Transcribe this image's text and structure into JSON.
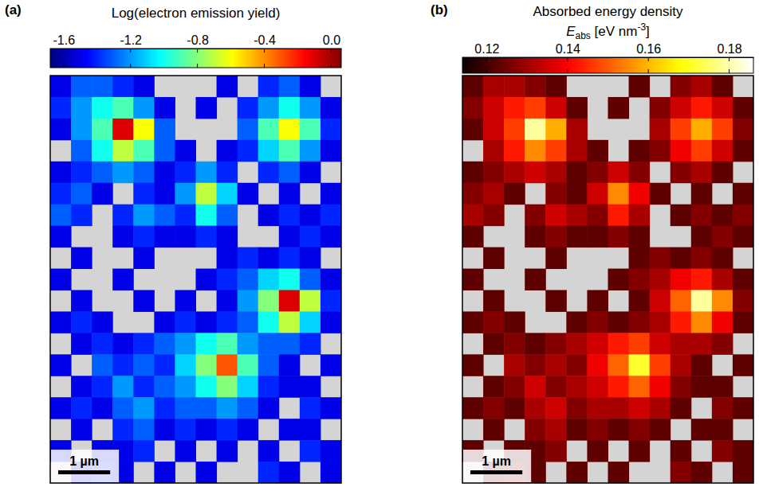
{
  "chart_data": [
    {
      "type": "heatmap",
      "panel_label": "(a)",
      "colorbar_title": "Log(electron emission yield)",
      "color": "jet",
      "colorbar_range": [
        -1.68,
        0.06
      ],
      "colorbar_ticks": [
        -1.6,
        -1.2,
        -0.8,
        -0.4,
        {
          "value": 0,
          "label": "0.0"
        }
      ],
      "tick_labels": false,
      "xlim": [
        0,
        5.6
      ],
      "ylim": [
        0,
        7.9
      ],
      "scale_bar": {
        "label": "1 µm",
        "length": 1
      },
      "cells": [
        [
          -1.5,
          -1.3,
          -1.3,
          -1.4,
          -1.5,
          null,
          null,
          null,
          -1.5,
          null,
          -1.4,
          -1.3,
          -1.5,
          null
        ],
        [
          -1.4,
          -1.2,
          -1.0,
          -0.9,
          -1.2,
          -1.5,
          null,
          -1.5,
          null,
          -1.4,
          -1.2,
          -1.0,
          -1.2,
          -1.5
        ],
        [
          -1.5,
          -1.2,
          -0.9,
          -0.1,
          -0.6,
          -1.3,
          null,
          null,
          null,
          -1.3,
          -0.9,
          -0.6,
          -0.9,
          -1.4
        ],
        [
          null,
          -1.3,
          -1.0,
          -0.7,
          -0.9,
          -1.3,
          -1.5,
          null,
          -1.5,
          -1.4,
          -1.1,
          -0.9,
          -1.2,
          -1.5
        ],
        [
          -1.5,
          -1.4,
          -1.3,
          -1.2,
          -1.3,
          -1.5,
          -1.4,
          -1.2,
          -1.4,
          null,
          -1.4,
          -1.3,
          -1.5,
          null
        ],
        [
          -1.4,
          -1.3,
          -1.5,
          null,
          -1.4,
          -1.5,
          -1.2,
          -0.7,
          -1.1,
          -1.5,
          null,
          -1.5,
          null,
          -1.5
        ],
        [
          -1.3,
          -1.4,
          null,
          -1.4,
          -1.2,
          -1.3,
          -1.4,
          -1.0,
          -1.3,
          null,
          -1.5,
          -1.4,
          -1.5,
          -1.4
        ],
        [
          -1.5,
          null,
          null,
          -1.5,
          -1.4,
          -1.5,
          -1.5,
          -1.4,
          -1.5,
          null,
          null,
          -1.5,
          -1.4,
          -1.5
        ],
        [
          null,
          -1.5,
          null,
          null,
          -1.5,
          null,
          null,
          null,
          -1.5,
          -1.4,
          -1.5,
          -1.4,
          -1.5,
          null
        ],
        [
          -1.5,
          null,
          null,
          -1.5,
          null,
          null,
          null,
          -1.5,
          -1.4,
          -1.3,
          -1.1,
          -1.0,
          -1.3,
          -1.5
        ],
        [
          null,
          -1.5,
          null,
          null,
          -1.5,
          null,
          -1.5,
          null,
          -1.5,
          -1.2,
          -0.8,
          -0.1,
          -0.7,
          -1.4
        ],
        [
          -1.5,
          -1.4,
          -1.5,
          null,
          null,
          -1.5,
          -1.4,
          -1.5,
          -1.4,
          -1.3,
          -1.0,
          -0.7,
          -1.1,
          -1.5
        ],
        [
          null,
          -1.5,
          -1.4,
          -1.5,
          -1.4,
          -1.3,
          -1.2,
          -1.0,
          -0.9,
          -1.2,
          -1.3,
          -1.3,
          -1.4,
          null
        ],
        [
          -1.5,
          null,
          -1.3,
          -1.4,
          -1.3,
          -1.4,
          -1.1,
          -0.8,
          -0.3,
          -0.9,
          -1.3,
          -1.5,
          null,
          -1.5
        ],
        [
          null,
          -1.5,
          -1.4,
          -1.2,
          -1.4,
          -1.3,
          -1.2,
          -1.0,
          -0.8,
          -1.1,
          -1.4,
          -1.5,
          -1.5,
          null
        ],
        [
          -1.5,
          -1.4,
          -1.5,
          -1.3,
          -1.2,
          -1.4,
          -1.3,
          -1.3,
          -1.2,
          -1.3,
          -1.5,
          null,
          -1.4,
          -1.5
        ],
        [
          null,
          -1.5,
          null,
          -1.4,
          -1.3,
          -1.5,
          -1.4,
          -1.5,
          -1.4,
          -1.5,
          null,
          -1.5,
          -1.5,
          null
        ],
        [
          -1.5,
          null,
          -1.5,
          -1.5,
          -1.4,
          null,
          -1.5,
          null,
          -1.5,
          null,
          -1.5,
          null,
          -1.4,
          -1.5
        ],
        [
          null,
          -1.5,
          -1.4,
          -1.5,
          null,
          -1.5,
          null,
          -1.5,
          null,
          null,
          -1.4,
          -1.5,
          null,
          -1.5
        ]
      ]
    },
    {
      "type": "heatmap",
      "panel_label": "(b)",
      "colorbar_title": [
        "Absorbed energy density",
        {
          "text": "E",
          "sub": "abs",
          "rest": " [eV nm",
          "sup": "-3",
          "end": "]"
        }
      ],
      "color": "hot",
      "colorbar_range": [
        0.114,
        0.186
      ],
      "colorbar_ticks": [
        0.12,
        0.14,
        0.16,
        0.18
      ],
      "tick_labels": false,
      "xlim": [
        0,
        5.6
      ],
      "ylim": [
        0,
        7.9
      ],
      "scale_bar": {
        "label": "1 µm",
        "length": 1
      },
      "cells": [
        [
          0.123,
          0.131,
          0.131,
          0.127,
          0.123,
          null,
          null,
          null,
          0.123,
          null,
          0.127,
          0.131,
          0.123,
          null
        ],
        [
          0.127,
          0.135,
          0.143,
          0.147,
          0.135,
          0.123,
          null,
          0.123,
          null,
          0.127,
          0.135,
          0.143,
          0.135,
          0.123
        ],
        [
          0.123,
          0.135,
          0.147,
          0.179,
          0.159,
          0.131,
          null,
          null,
          null,
          0.131,
          0.147,
          0.159,
          0.147,
          0.127
        ],
        [
          null,
          0.131,
          0.143,
          0.155,
          0.147,
          0.131,
          0.123,
          null,
          0.123,
          0.127,
          0.139,
          0.147,
          0.135,
          0.123
        ],
        [
          0.123,
          0.127,
          0.131,
          0.135,
          0.131,
          0.123,
          0.127,
          0.135,
          0.127,
          null,
          0.127,
          0.131,
          0.123,
          null
        ],
        [
          0.127,
          0.131,
          0.123,
          null,
          0.127,
          0.123,
          0.135,
          0.155,
          0.139,
          0.123,
          null,
          0.123,
          null,
          0.123
        ],
        [
          0.131,
          0.127,
          null,
          0.127,
          0.135,
          0.131,
          0.127,
          0.143,
          0.131,
          null,
          0.123,
          0.127,
          0.123,
          0.127
        ],
        [
          0.123,
          null,
          null,
          0.123,
          0.127,
          0.123,
          0.123,
          0.127,
          0.123,
          null,
          null,
          0.123,
          0.127,
          0.123
        ],
        [
          null,
          0.123,
          null,
          null,
          0.123,
          null,
          null,
          null,
          0.123,
          0.127,
          0.123,
          0.127,
          0.123,
          null
        ],
        [
          0.123,
          null,
          null,
          0.123,
          null,
          null,
          null,
          0.123,
          0.127,
          0.131,
          0.139,
          0.143,
          0.131,
          0.123
        ],
        [
          null,
          0.123,
          null,
          null,
          0.123,
          null,
          0.123,
          null,
          0.123,
          0.135,
          0.151,
          0.179,
          0.155,
          0.127
        ],
        [
          0.123,
          0.127,
          0.123,
          null,
          null,
          0.123,
          0.127,
          0.123,
          0.127,
          0.131,
          0.143,
          0.155,
          0.139,
          0.123
        ],
        [
          null,
          0.123,
          0.127,
          0.123,
          0.127,
          0.131,
          0.135,
          0.143,
          0.147,
          0.135,
          0.131,
          0.131,
          0.127,
          null
        ],
        [
          0.123,
          null,
          0.131,
          0.127,
          0.131,
          0.127,
          0.139,
          0.151,
          0.171,
          0.147,
          0.131,
          0.123,
          null,
          0.123
        ],
        [
          null,
          0.123,
          0.127,
          0.135,
          0.127,
          0.131,
          0.135,
          0.143,
          0.151,
          0.139,
          0.127,
          0.123,
          0.123,
          null
        ],
        [
          0.123,
          0.127,
          0.123,
          0.131,
          0.135,
          0.127,
          0.131,
          0.131,
          0.135,
          0.131,
          0.123,
          null,
          0.127,
          0.123
        ],
        [
          null,
          0.123,
          null,
          0.127,
          0.131,
          0.123,
          0.127,
          0.123,
          0.127,
          0.123,
          null,
          0.123,
          0.123,
          null
        ],
        [
          0.123,
          null,
          0.123,
          0.123,
          0.127,
          null,
          0.123,
          null,
          0.123,
          null,
          0.123,
          null,
          0.127,
          0.123
        ],
        [
          null,
          0.123,
          0.127,
          0.123,
          null,
          0.123,
          null,
          0.123,
          null,
          null,
          0.127,
          0.123,
          null,
          0.123
        ]
      ]
    }
  ]
}
